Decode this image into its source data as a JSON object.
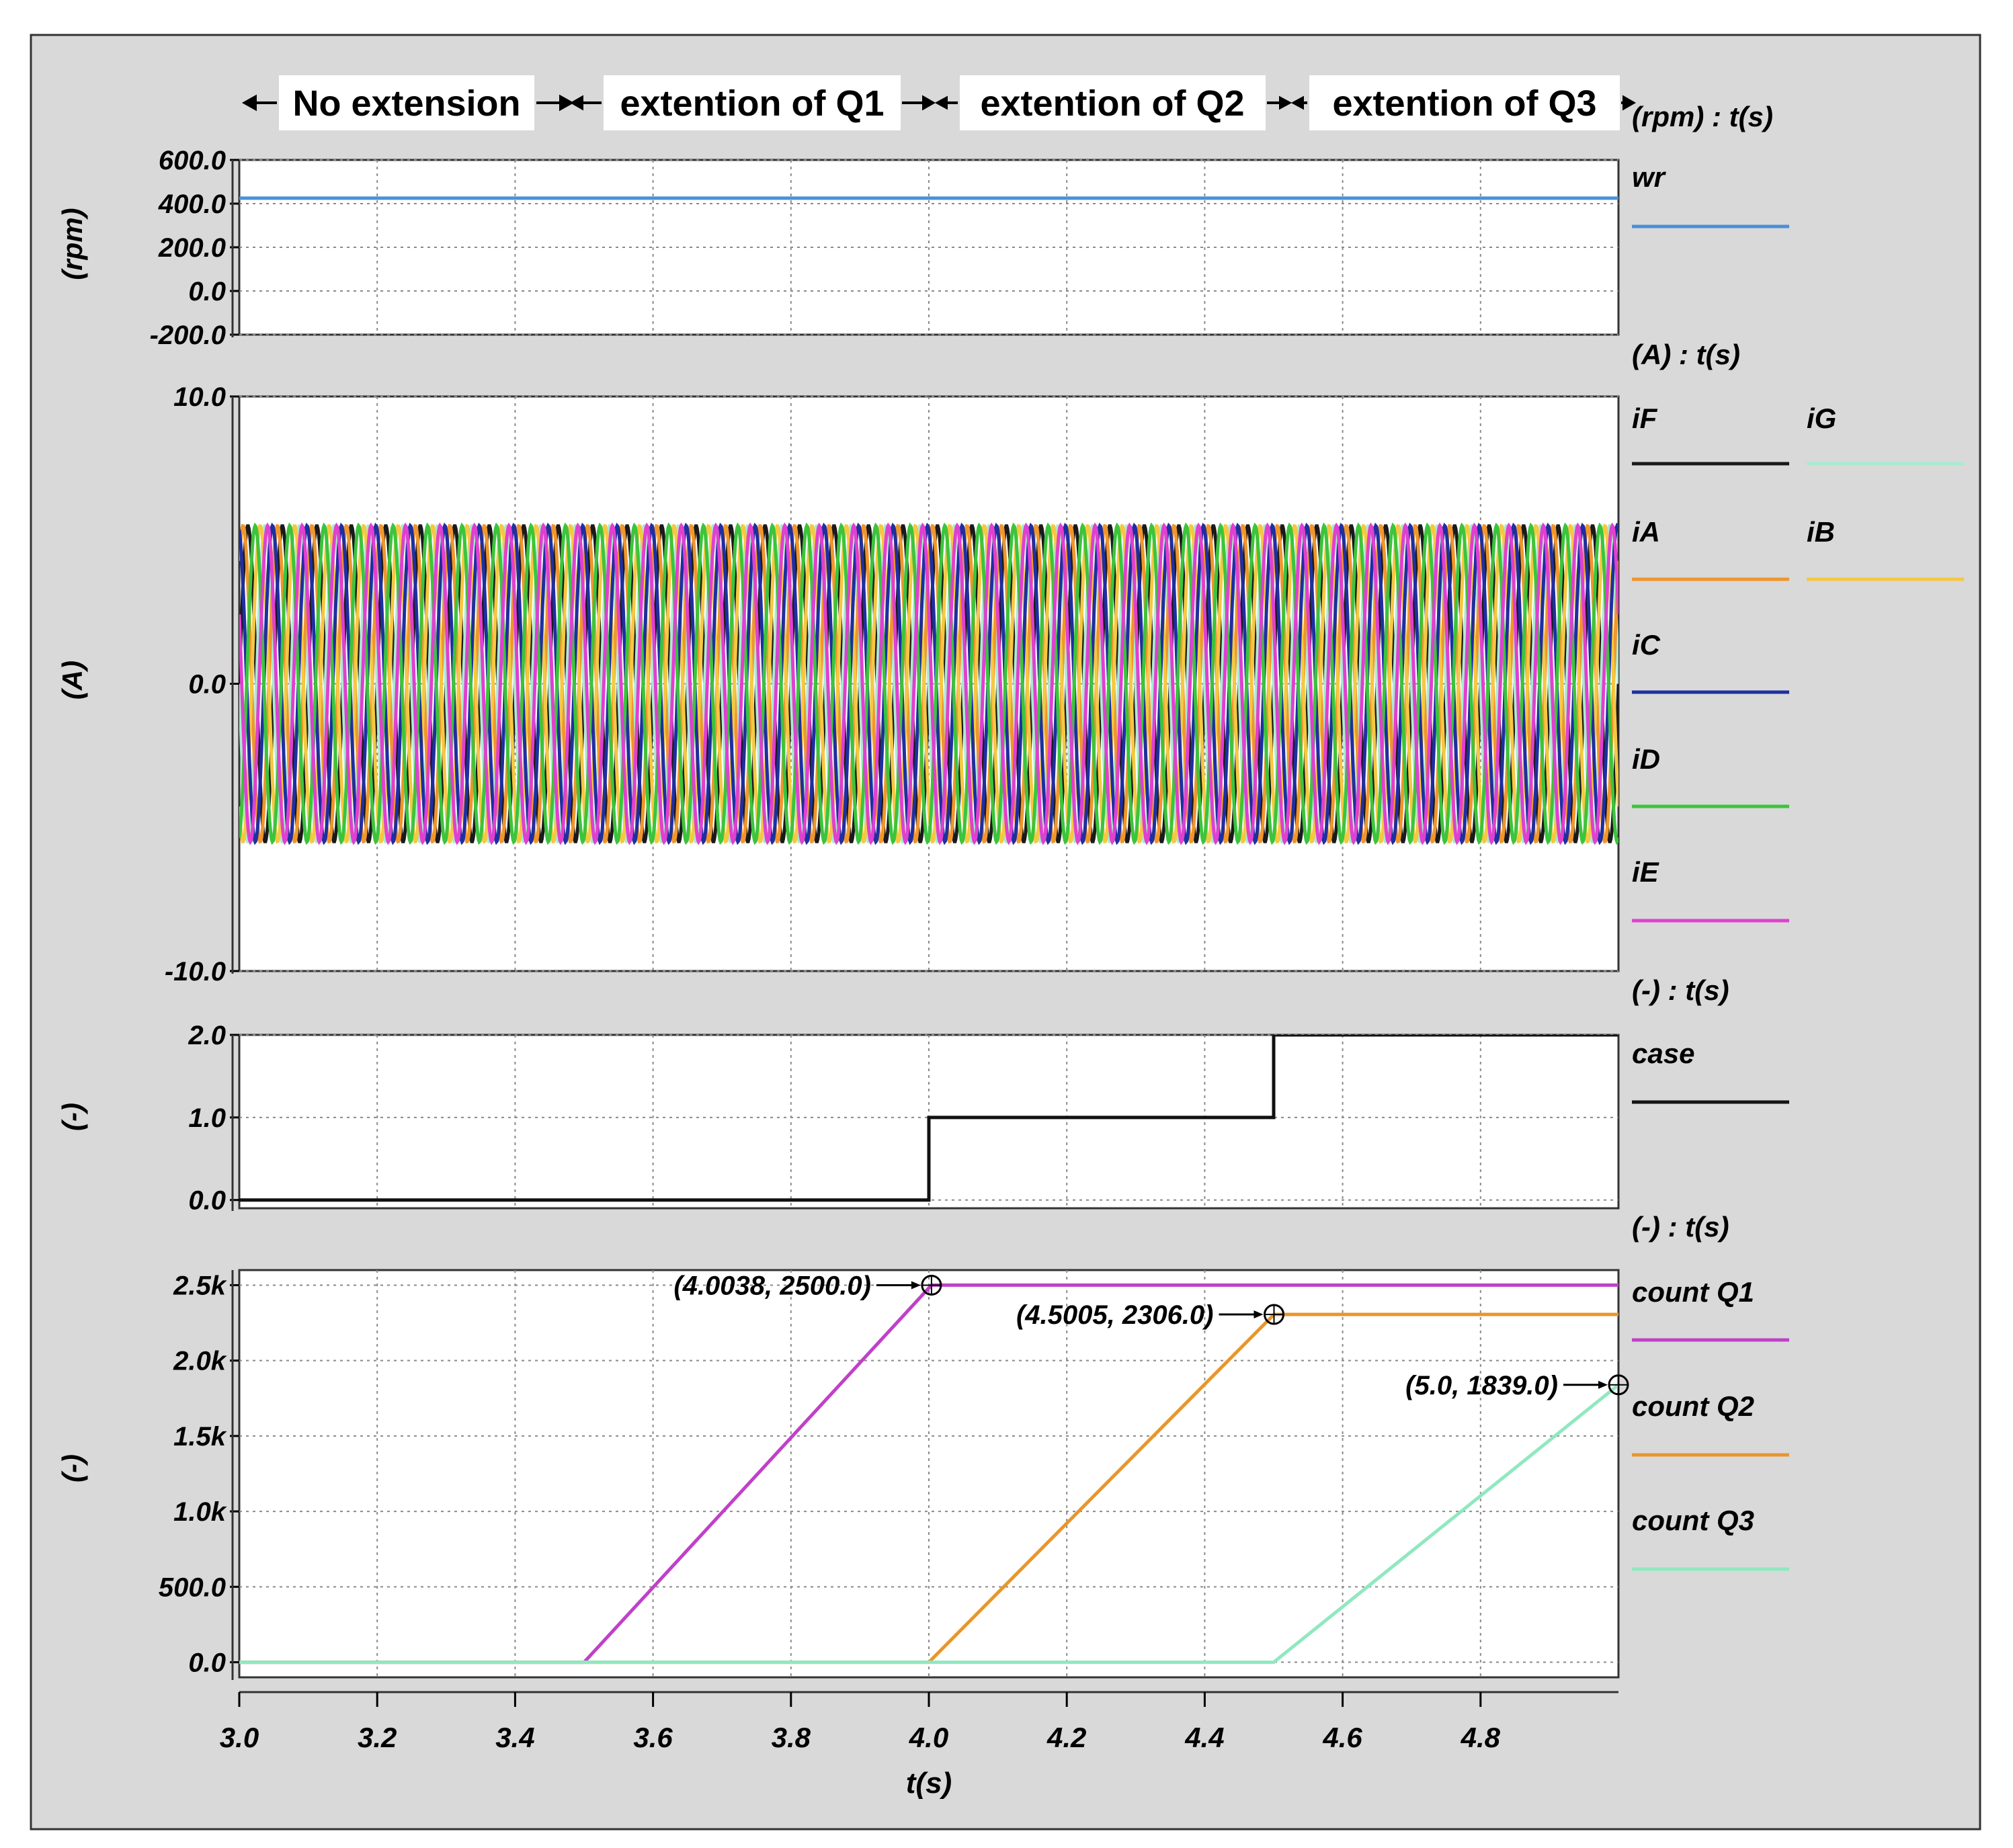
{
  "header": {
    "segments": [
      "No extension",
      "extention of Q1",
      "extention of Q2",
      "extention of Q3"
    ],
    "unit_label": "(rpm) : t(s)"
  },
  "colors": {
    "wr": "#4a90d9",
    "iF": "#1a1a1a",
    "iG": "#a8ecd0",
    "iA": "#f0962c",
    "iB": "#f5c842",
    "iC": "#1f2fa0",
    "iD": "#3cc43c",
    "iE": "#e040d0",
    "case": "#111111",
    "count_q1": "#c040c8",
    "count_q2": "#e8962c",
    "count_q3": "#90e8c0",
    "panel_bg": "#d9d9d9",
    "plot_bg": "#ffffff",
    "grid": "#8a8a8a"
  },
  "chart_data": [
    {
      "type": "line",
      "ylabel": "(rpm)",
      "unit_label": "(rpm) : t(s)",
      "xlim": [
        3.0,
        5.0
      ],
      "ylim": [
        -200,
        600
      ],
      "yticks": [
        "600.0",
        "400.0",
        "200.0",
        "0.0",
        "-200.0"
      ],
      "ytick_values": [
        600,
        400,
        200,
        0,
        -200
      ],
      "series": [
        {
          "name": "wr",
          "color_key": "wr",
          "x": [
            3.0,
            5.0
          ],
          "y": [
            425,
            425
          ]
        }
      ]
    },
    {
      "type": "line",
      "ylabel": "(A)",
      "unit_label": "(A) : t(s)",
      "xlim": [
        3.0,
        5.0
      ],
      "ylim": [
        -10,
        10
      ],
      "yticks": [
        "10.0",
        "0.0",
        "-10.0"
      ],
      "ytick_values": [
        10,
        0,
        -10
      ],
      "sine": {
        "amplitude": 5.5,
        "cycles": 40
      },
      "series": [
        {
          "name": "iF",
          "color_key": "iF",
          "phase_deg": 0
        },
        {
          "name": "iG",
          "color_key": "iG",
          "phase_deg": 180
        },
        {
          "name": "iA",
          "color_key": "iA",
          "phase_deg": 51
        },
        {
          "name": "iB",
          "color_key": "iB",
          "phase_deg": 231
        },
        {
          "name": "iC",
          "color_key": "iC",
          "phase_deg": 103
        },
        {
          "name": "iD",
          "color_key": "iD",
          "phase_deg": 283
        },
        {
          "name": "iE",
          "color_key": "iE",
          "phase_deg": 154
        }
      ]
    },
    {
      "type": "line",
      "ylabel": "(-)",
      "unit_label": "(-) : t(s)",
      "xlim": [
        3.0,
        5.0
      ],
      "ylim": [
        -0.1,
        2.0
      ],
      "yticks": [
        "2.0",
        "1.0",
        "0.0"
      ],
      "ytick_values": [
        2,
        1,
        0
      ],
      "series": [
        {
          "name": "case",
          "color_key": "case",
          "x": [
            3.0,
            4.0,
            4.0,
            4.5,
            4.5,
            5.0
          ],
          "y": [
            0,
            0,
            1,
            1,
            2,
            2
          ]
        }
      ]
    },
    {
      "type": "line",
      "ylabel": "(-)",
      "unit_label": "(-) : t(s)",
      "xlim": [
        3.0,
        5.0
      ],
      "ylim": [
        -100,
        2600
      ],
      "yticks": [
        "2.5k",
        "2.0k",
        "1.5k",
        "1.0k",
        "500.0",
        "0.0"
      ],
      "ytick_values": [
        2500,
        2000,
        1500,
        1000,
        500,
        0
      ],
      "xticks": [
        "3.0",
        "3.2",
        "3.4",
        "3.6",
        "3.8",
        "4.0",
        "4.2",
        "4.4",
        "4.6",
        "4.8"
      ],
      "xtick_values": [
        3.0,
        3.2,
        3.4,
        3.6,
        3.8,
        4.0,
        4.2,
        4.4,
        4.6,
        4.8
      ],
      "xlabel": "t(s)",
      "series": [
        {
          "name": "count Q1",
          "color_key": "count_q1",
          "x": [
            3.0,
            3.5,
            4.0038,
            5.0
          ],
          "y": [
            0,
            0,
            2500,
            2500
          ]
        },
        {
          "name": "count Q2",
          "color_key": "count_q2",
          "x": [
            3.0,
            4.0,
            4.5005,
            5.0
          ],
          "y": [
            0,
            0,
            2306,
            2306
          ]
        },
        {
          "name": "count Q3",
          "color_key": "count_q3",
          "x": [
            3.0,
            4.5,
            5.0
          ],
          "y": [
            0,
            0,
            1839
          ]
        }
      ],
      "annotations": [
        {
          "label": "(4.0038, 2500.0)",
          "x": 4.0038,
          "y": 2500
        },
        {
          "label": "(4.5005, 2306.0)",
          "x": 4.5005,
          "y": 2306
        },
        {
          "label": "(5.0, 1839.0)",
          "x": 5.0,
          "y": 1839
        }
      ]
    }
  ]
}
